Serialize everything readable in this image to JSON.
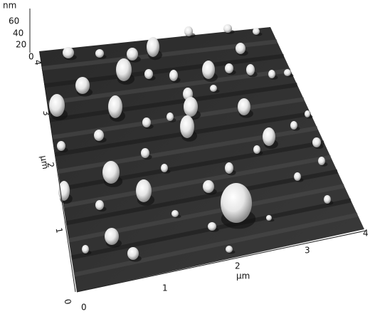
{
  "z_axis": {
    "unit": "nm",
    "ticks": [
      "60",
      "40",
      "20",
      "0"
    ]
  },
  "y_axis": {
    "unit": "µm",
    "ticks": [
      "0",
      "1",
      "2",
      "3",
      "4"
    ]
  },
  "x_axis": {
    "unit": "µm",
    "ticks": [
      "0",
      "1",
      "2",
      "3",
      "4"
    ]
  }
}
